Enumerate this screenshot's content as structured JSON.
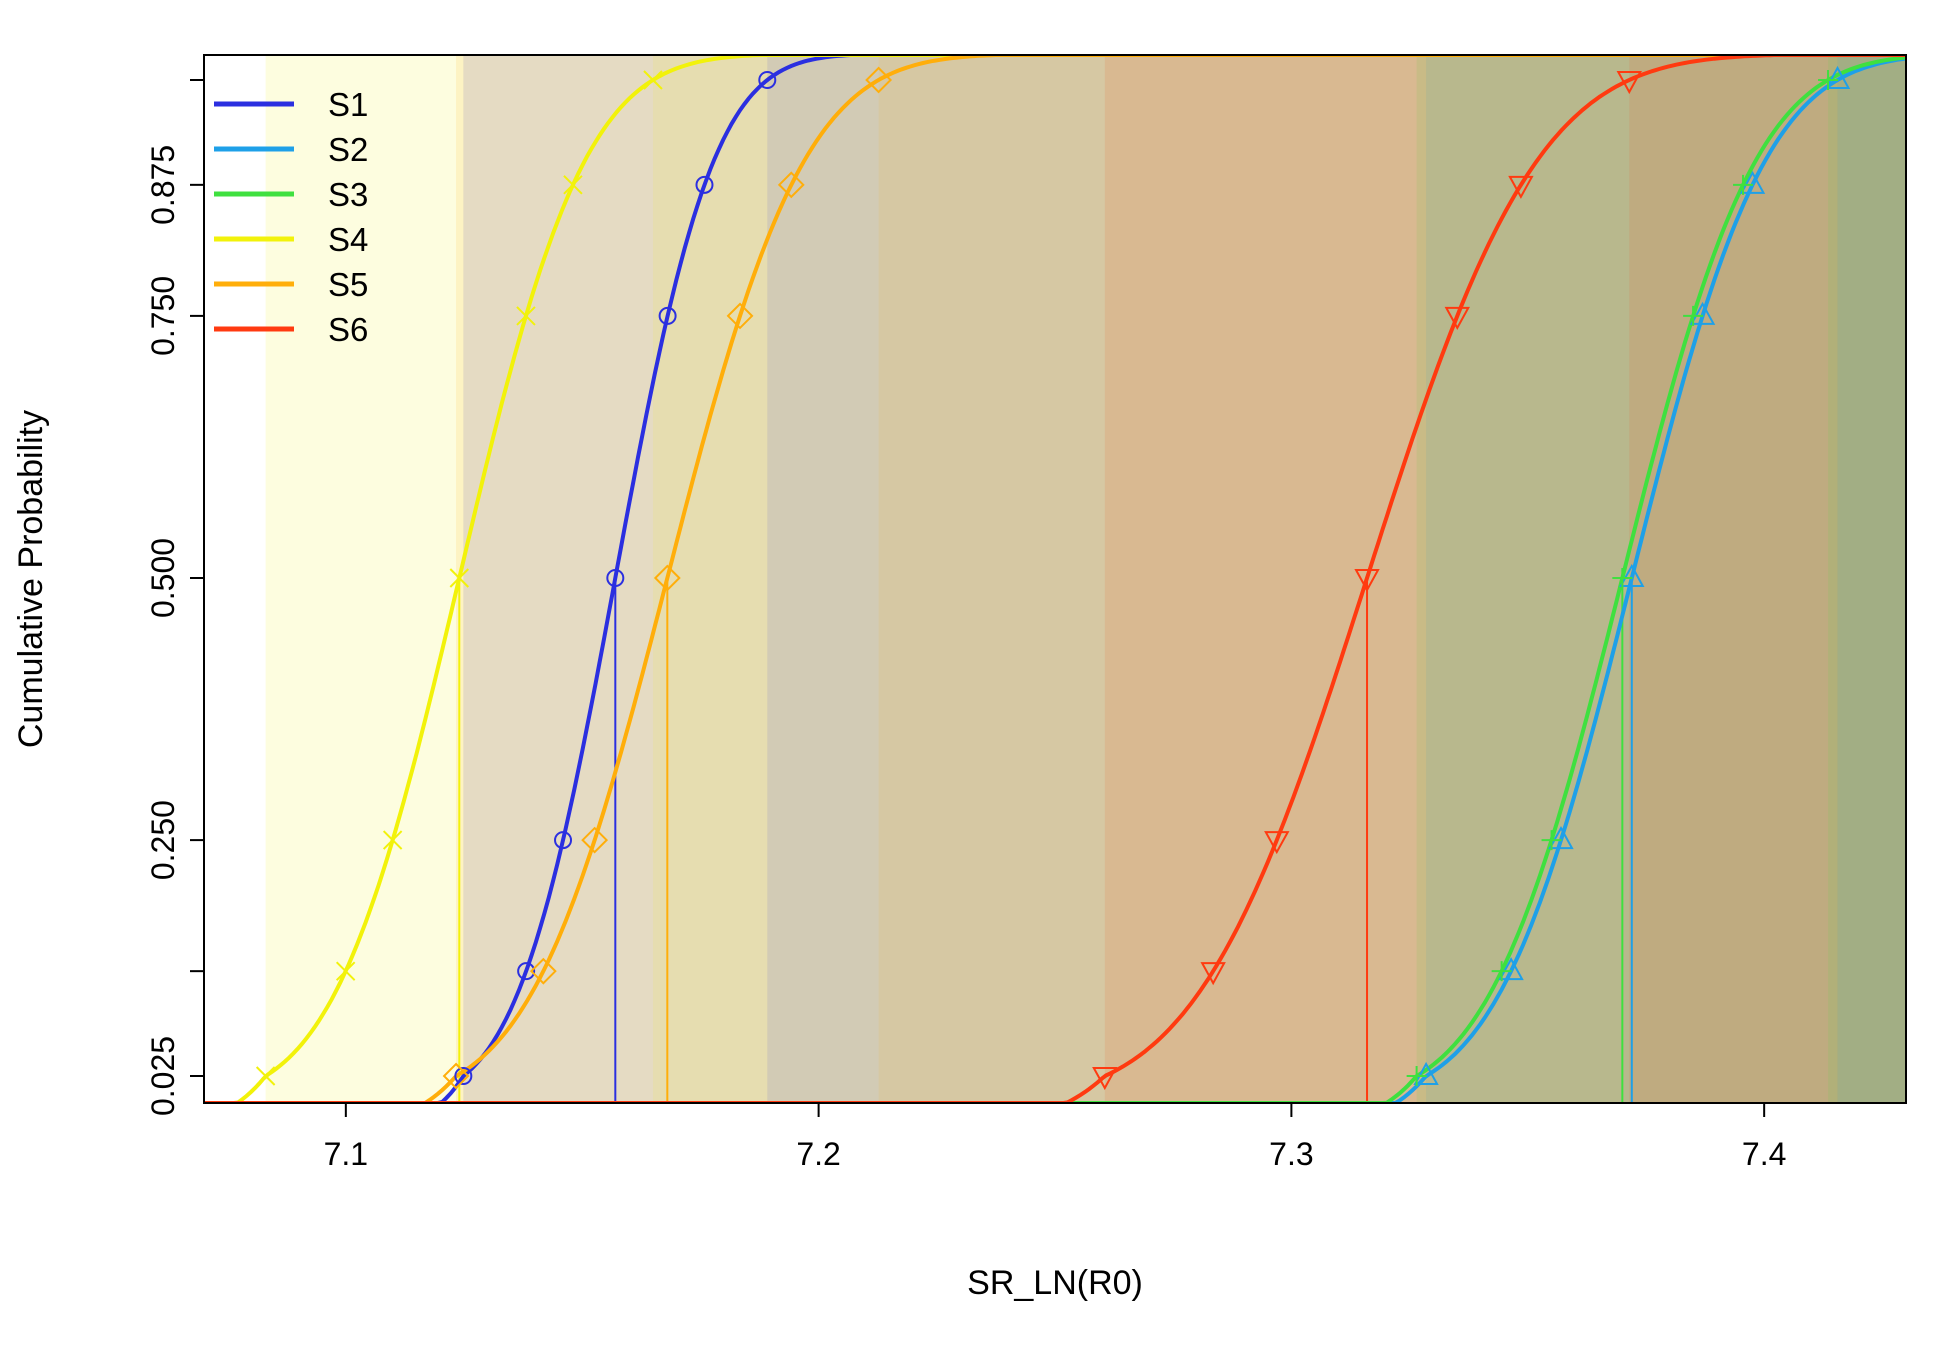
{
  "chart_data": {
    "type": "line",
    "title": "",
    "xlabel": "SR_LN(R0)",
    "ylabel": "Cumulative Probability",
    "xlim": [
      7.07,
      7.43
    ],
    "ylim": [
      0.0,
      1.0
    ],
    "x_ticks": [
      "7.1",
      "7.2",
      "7.3",
      "7.4"
    ],
    "x_tick_values": [
      7.1,
      7.2,
      7.3,
      7.4
    ],
    "y_ticks": [
      "0.025",
      "0.250",
      "0.500",
      "0.750",
      "0.875"
    ],
    "y_tick_values": [
      0.025,
      0.25,
      0.5,
      0.75,
      0.875
    ],
    "y_minor_ticks": [
      0.125,
      0.975
    ],
    "marker_probs": [
      0.025,
      0.125,
      0.25,
      0.5,
      0.75,
      0.875,
      0.975
    ],
    "grid": false,
    "legend_position": "top-left",
    "series": [
      {
        "name": "S1",
        "color": "#2B2FE0",
        "marker": "circle",
        "median": 7.157,
        "sd": 0.0164
      },
      {
        "name": "S2",
        "color": "#1EA0E8",
        "marker": "triangle",
        "median": 7.372,
        "sd": 0.0222
      },
      {
        "name": "S3",
        "color": "#3FE03F",
        "marker": "plus",
        "median": 7.37,
        "sd": 0.0222
      },
      {
        "name": "S4",
        "color": "#F2F20A",
        "marker": "cross",
        "median": 7.124,
        "sd": 0.0209
      },
      {
        "name": "S5",
        "color": "#FFAE0A",
        "marker": "diamond",
        "median": 7.168,
        "sd": 0.0228
      },
      {
        "name": "S6",
        "color": "#FF3A10",
        "marker": "triangle-down",
        "median": 7.316,
        "sd": 0.0283
      }
    ]
  }
}
